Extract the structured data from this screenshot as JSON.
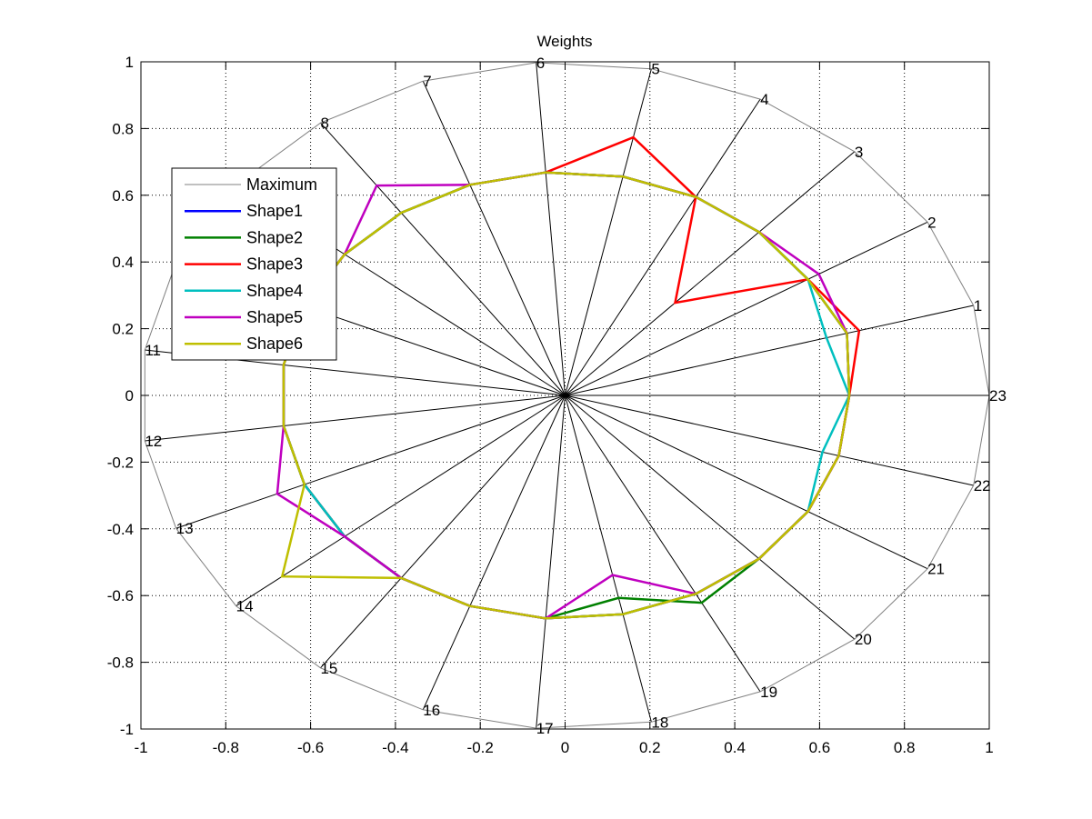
{
  "chart_data": {
    "type": "line",
    "subtype": "radar-in-cartesian",
    "title": "Weights",
    "xlim": [
      -1,
      1
    ],
    "ylim": [
      -1,
      1
    ],
    "xticks": [
      -1,
      -0.8,
      -0.6,
      -0.4,
      -0.2,
      0,
      0.2,
      0.4,
      0.6,
      0.8,
      1
    ],
    "yticks": [
      -1,
      -0.8,
      -0.6,
      -0.4,
      -0.2,
      0,
      0.2,
      0.4,
      0.6,
      0.8,
      1
    ],
    "xtick_labels": [
      "-1",
      "-0.8",
      "-0.6",
      "-0.4",
      "-0.2",
      "0",
      "0.2",
      "0.4",
      "0.6",
      "0.8",
      "1"
    ],
    "ytick_labels": [
      "-1",
      "-0.8",
      "-0.6",
      "-0.4",
      "-0.2",
      "0",
      "0.2",
      "0.4",
      "0.6",
      "0.8",
      "1"
    ],
    "grid": "dotted",
    "legend_position": "upper-left",
    "spokes": {
      "count": 23,
      "labels": [
        "1",
        "2",
        "3",
        "4",
        "5",
        "6",
        "7",
        "8",
        "9",
        "10",
        "11",
        "12",
        "13",
        "14",
        "15",
        "16",
        "17",
        "18",
        "19",
        "20",
        "21",
        "22",
        "23"
      ],
      "angles_deg": [
        15.65,
        31.3,
        46.96,
        62.61,
        78.26,
        93.91,
        109.57,
        125.22,
        140.87,
        156.52,
        172.17,
        187.83,
        203.48,
        219.13,
        234.78,
        250.43,
        266.09,
        281.74,
        297.39,
        313.04,
        328.7,
        344.35,
        0
      ]
    },
    "series": [
      {
        "name": "Maximum",
        "color": "#808080",
        "width": 1,
        "draw_spokes": true,
        "r": [
          1,
          1,
          1,
          1,
          1,
          1,
          1,
          1,
          1,
          1,
          1,
          1,
          1,
          1,
          1,
          1,
          1,
          1,
          1,
          1,
          1,
          1,
          1
        ]
      },
      {
        "name": "Shape1",
        "color": "#0000ff",
        "width": 2.5,
        "r": [
          0.69,
          0.67,
          0.67,
          0.67,
          0.67,
          0.67,
          0.67,
          0.67,
          0.67,
          0.67,
          0.67,
          0.67,
          0.67,
          0.67,
          0.67,
          0.67,
          0.67,
          0.67,
          0.67,
          0.67,
          0.67,
          0.67,
          0.67
        ]
      },
      {
        "name": "Shape2",
        "color": "#008000",
        "width": 2.5,
        "r": [
          0.69,
          0.67,
          0.67,
          0.67,
          0.67,
          0.67,
          0.67,
          0.67,
          0.67,
          0.67,
          0.67,
          0.67,
          0.67,
          0.67,
          0.67,
          0.67,
          0.67,
          0.62,
          0.7,
          0.67,
          0.67,
          0.67,
          0.67
        ]
      },
      {
        "name": "Shape3",
        "color": "#ff0000",
        "width": 2.5,
        "r": [
          0.72,
          0.67,
          0.38,
          0.67,
          0.79,
          0.67,
          0.67,
          0.67,
          0.67,
          0.67,
          0.67,
          0.67,
          0.67,
          0.67,
          0.67,
          0.67,
          0.67,
          0.67,
          0.67,
          0.67,
          0.67,
          0.67,
          0.67
        ]
      },
      {
        "name": "Shape4",
        "color": "#00bfbf",
        "width": 2.5,
        "r": [
          0.64,
          0.67,
          0.67,
          0.67,
          0.67,
          0.67,
          0.67,
          0.67,
          0.67,
          0.67,
          0.67,
          0.67,
          0.67,
          0.67,
          0.67,
          0.67,
          0.67,
          0.67,
          0.67,
          0.67,
          0.67,
          0.63,
          0.67
        ]
      },
      {
        "name": "Shape5",
        "color": "#bf00bf",
        "width": 2.5,
        "r": [
          0.69,
          0.7,
          0.67,
          0.67,
          0.67,
          0.67,
          0.67,
          0.77,
          0.67,
          0.67,
          0.67,
          0.67,
          0.74,
          0.67,
          0.67,
          0.67,
          0.67,
          0.55,
          0.67,
          0.67,
          0.67,
          0.67,
          0.67
        ]
      },
      {
        "name": "Shape6",
        "color": "#bfbf00",
        "width": 2.5,
        "r": [
          0.69,
          0.67,
          0.67,
          0.67,
          0.67,
          0.67,
          0.67,
          0.67,
          0.67,
          0.67,
          0.67,
          0.67,
          0.67,
          0.86,
          0.67,
          0.67,
          0.67,
          0.67,
          0.67,
          0.67,
          0.67,
          0.67,
          0.67
        ]
      }
    ]
  }
}
